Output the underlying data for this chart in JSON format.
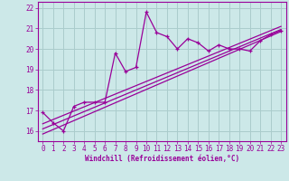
{
  "xlabel": "Windchill (Refroidissement éolien,°C)",
  "bg_color": "#cce8e8",
  "grid_color": "#aacccc",
  "line_color": "#990099",
  "xlim": [
    -0.5,
    23.5
  ],
  "ylim": [
    15.5,
    22.3
  ],
  "yticks": [
    16,
    17,
    18,
    19,
    20,
    21,
    22
  ],
  "xticks": [
    0,
    1,
    2,
    3,
    4,
    5,
    6,
    7,
    8,
    9,
    10,
    11,
    12,
    13,
    14,
    15,
    16,
    17,
    18,
    19,
    20,
    21,
    22,
    23
  ],
  "data_x": [
    0,
    1,
    2,
    3,
    4,
    5,
    6,
    7,
    8,
    9,
    10,
    11,
    12,
    13,
    14,
    15,
    16,
    17,
    18,
    19,
    20,
    21,
    22,
    23
  ],
  "data_y": [
    16.9,
    16.4,
    16.0,
    17.2,
    17.4,
    17.4,
    17.4,
    19.8,
    18.9,
    19.1,
    21.8,
    20.8,
    20.6,
    20.0,
    20.5,
    20.3,
    19.9,
    20.2,
    20.0,
    20.0,
    19.9,
    20.4,
    20.7,
    20.9
  ],
  "reg_line1_x": [
    0,
    23
  ],
  "reg_line1_y": [
    16.35,
    21.1
  ],
  "reg_line2_x": [
    0,
    23
  ],
  "reg_line2_y": [
    15.85,
    20.85
  ],
  "reg_line3_x": [
    0,
    23
  ],
  "reg_line3_y": [
    16.1,
    20.95
  ]
}
